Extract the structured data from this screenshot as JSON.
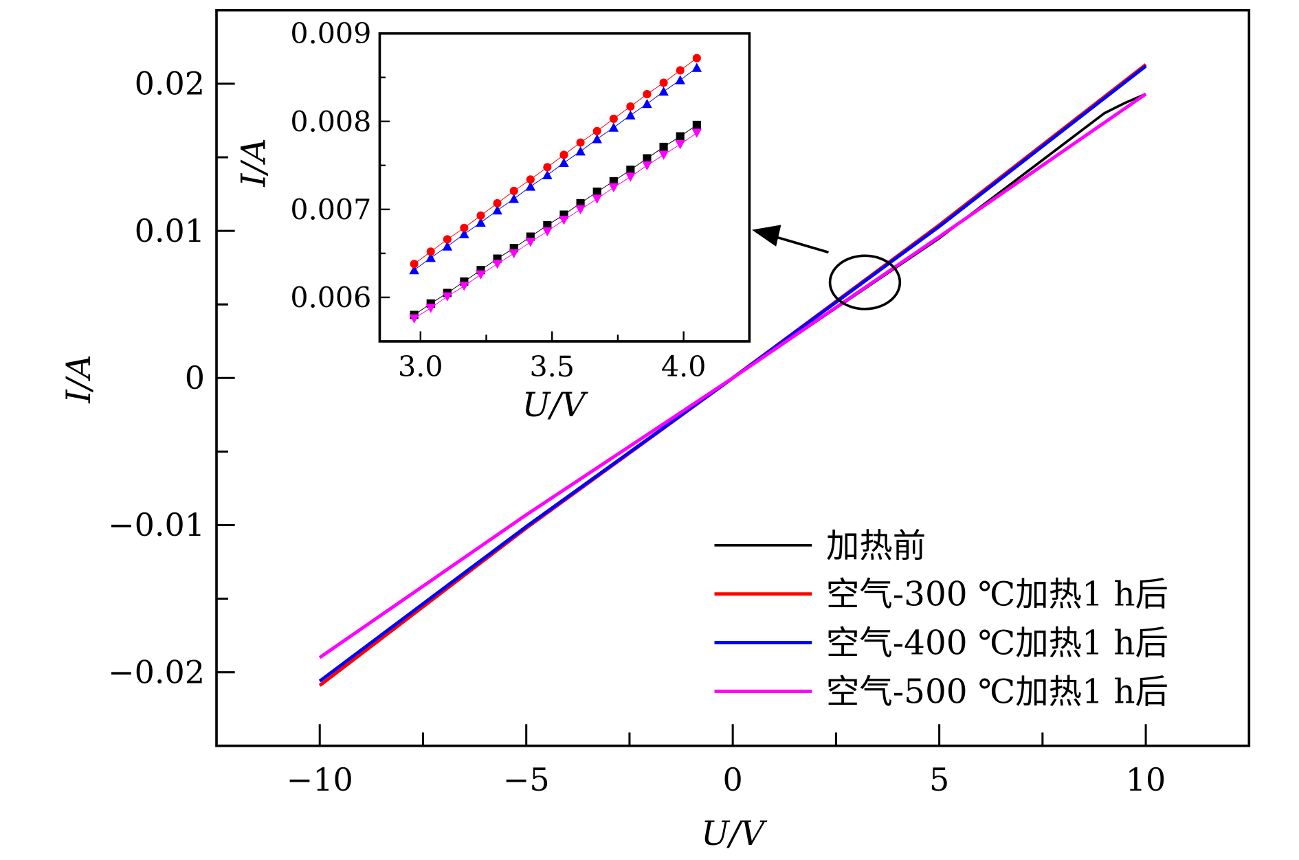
{
  "chart_data": [
    {
      "type": "line",
      "role": "main",
      "xlabel": "U/V",
      "ylabel": "I/A",
      "xlim": [
        -12.5,
        12.5
      ],
      "ylim": [
        -0.025,
        0.025
      ],
      "xticks": [
        -10,
        -5,
        0,
        5,
        10
      ],
      "xtick_labels": [
        "−10",
        "−5",
        "0",
        "5",
        "10"
      ],
      "yticks": [
        -0.02,
        -0.01,
        0,
        0.01,
        0.02
      ],
      "ytick_labels": [
        "−0.02",
        "−0.01",
        "0",
        "0.01",
        "0.02"
      ],
      "grid": false,
      "legend_position": "bottom-right",
      "series": [
        {
          "name": "加热前",
          "color": "#000000",
          "x": [
            -10,
            -5,
            0,
            5,
            9,
            9.5,
            10
          ],
          "y": [
            -0.019,
            -0.0093,
            0,
            0.0095,
            0.018,
            0.0187,
            0.0193
          ]
        },
        {
          "name": "空气-300 ℃加热1 h后",
          "color": "#ff0000",
          "x": [
            -10,
            -5,
            0,
            5,
            10
          ],
          "y": [
            -0.0209,
            -0.0102,
            0,
            0.0104,
            0.0213
          ]
        },
        {
          "name": "空气-400 ℃加热1 h后",
          "color": "#0000ff",
          "x": [
            -10,
            -5,
            0,
            5,
            10
          ],
          "y": [
            -0.0206,
            -0.0101,
            0,
            0.0103,
            0.0212
          ]
        },
        {
          "name": "空气-500 ℃加热1 h后",
          "color": "#ff00ff",
          "x": [
            -10,
            -5,
            0,
            5,
            10
          ],
          "y": [
            -0.019,
            -0.0093,
            0,
            0.0096,
            0.0193
          ]
        }
      ],
      "annotation": {
        "type": "ellipse-with-arrow-to-inset",
        "center": [
          3.2,
          0.0065
        ]
      }
    },
    {
      "type": "line",
      "role": "inset",
      "xlabel": "U/V",
      "ylabel": "I/A",
      "xlim": [
        2.845,
        4.25
      ],
      "ylim": [
        0.0055,
        0.009
      ],
      "xticks": [
        3.0,
        3.5,
        4.0
      ],
      "xtick_labels": [
        "3.0",
        "3.5",
        "4.0"
      ],
      "yticks": [
        0.006,
        0.007,
        0.008,
        0.009
      ],
      "ytick_labels": [
        "0.006",
        "0.007",
        "0.008",
        "0.009"
      ],
      "x": [
        2.976,
        3.039,
        3.102,
        3.166,
        3.229,
        3.292,
        3.355,
        3.418,
        3.482,
        3.545,
        3.608,
        3.671,
        3.734,
        3.798,
        3.861,
        3.924,
        3.987,
        4.05
      ],
      "series": [
        {
          "name": "加热前",
          "color": "#000000",
          "marker": "square",
          "y": [
            0.0058,
            0.00593,
            0.00605,
            0.00618,
            0.00631,
            0.00644,
            0.00656,
            0.00669,
            0.00682,
            0.00694,
            0.00707,
            0.0072,
            0.00732,
            0.00745,
            0.00758,
            0.00771,
            0.00783,
            0.00796
          ]
        },
        {
          "name": "空气-300 ℃加热1 h后",
          "color": "#ff0000",
          "marker": "circle",
          "y": [
            0.00638,
            0.00652,
            0.00666,
            0.00679,
            0.00693,
            0.00707,
            0.00721,
            0.00734,
            0.00748,
            0.00762,
            0.00776,
            0.00789,
            0.00803,
            0.00817,
            0.00831,
            0.00844,
            0.00858,
            0.00872
          ]
        },
        {
          "name": "空气-400 ℃加热1 h后",
          "color": "#0000ff",
          "marker": "triangle-up",
          "y": [
            0.00631,
            0.00645,
            0.00658,
            0.00672,
            0.00685,
            0.00699,
            0.00712,
            0.00726,
            0.00739,
            0.00753,
            0.00766,
            0.0078,
            0.00793,
            0.00807,
            0.0082,
            0.00834,
            0.00847,
            0.00861
          ]
        },
        {
          "name": "空气-500 ℃加热1 h后",
          "color": "#ff00ff",
          "marker": "triangle-down",
          "y": [
            0.00576,
            0.00588,
            0.00601,
            0.00613,
            0.00626,
            0.00638,
            0.0065,
            0.00663,
            0.00675,
            0.00688,
            0.007,
            0.00712,
            0.00725,
            0.00737,
            0.0075,
            0.00762,
            0.00774,
            0.00787
          ]
        }
      ]
    }
  ]
}
